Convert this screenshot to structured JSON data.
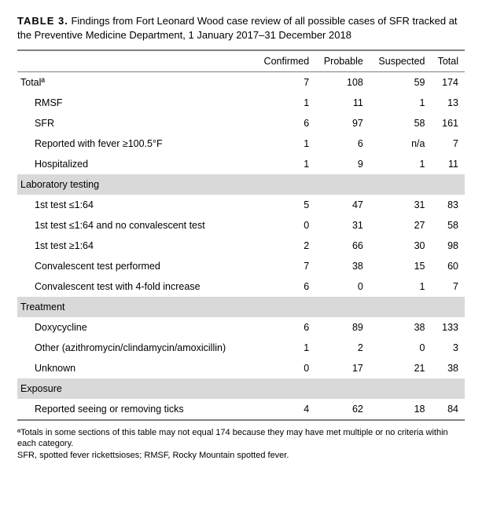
{
  "title_label": "TABLE 3.",
  "title_text": "Findings from Fort Leonard Wood case review of all possible cases of SFR tracked at the Preventive Medicine Department, 1 January 2017–31 December 2018",
  "columns": [
    "Confirmed",
    "Probable",
    "Suspected",
    "Total"
  ],
  "sections": [
    {
      "header": "Totalª",
      "header_values": [
        "7",
        "108",
        "59",
        "174"
      ],
      "is_header_row": true,
      "rows": [
        {
          "label": "RMSF",
          "v": [
            "1",
            "11",
            "1",
            "13"
          ]
        },
        {
          "label": "SFR",
          "v": [
            "6",
            "97",
            "58",
            "161"
          ]
        },
        {
          "label": "Reported with fever ≥100.5°F",
          "v": [
            "1",
            "6",
            "n/a",
            "7"
          ]
        },
        {
          "label": "Hospitalized",
          "v": [
            "1",
            "9",
            "1",
            "11"
          ]
        }
      ]
    },
    {
      "header": "Laboratory testing",
      "rows": [
        {
          "label": "1st test ≤1:64",
          "v": [
            "5",
            "47",
            "31",
            "83"
          ]
        },
        {
          "label": "1st test ≤1:64 and no convalescent test",
          "v": [
            "0",
            "31",
            "27",
            "58"
          ]
        },
        {
          "label": "1st test ≥1:64",
          "v": [
            "2",
            "66",
            "30",
            "98"
          ]
        },
        {
          "label": "Convalescent test performed",
          "v": [
            "7",
            "38",
            "15",
            "60"
          ]
        },
        {
          "label": "Convalescent test with 4-fold increase",
          "v": [
            "6",
            "0",
            "1",
            "7"
          ]
        }
      ]
    },
    {
      "header": "Treatment",
      "rows": [
        {
          "label": "Doxycycline",
          "v": [
            "6",
            "89",
            "38",
            "133"
          ]
        },
        {
          "label": "Other (azithromycin/clindamycin/amoxicillin)",
          "v": [
            "1",
            "2",
            "0",
            "3"
          ]
        },
        {
          "label": "Unknown",
          "v": [
            "0",
            "17",
            "21",
            "38"
          ]
        }
      ]
    },
    {
      "header": "Exposure",
      "rows": [
        {
          "label": "Reported seeing or removing ticks",
          "v": [
            "4",
            "62",
            "18",
            "84"
          ]
        }
      ]
    }
  ],
  "footnote_a": "ªTotals in some sections of this table may not equal 174 because they may have met multiple or no criteria within each category.",
  "footnote_b": "SFR, spotted fever rickettsioses; RMSF, Rocky Mountain spotted fever."
}
